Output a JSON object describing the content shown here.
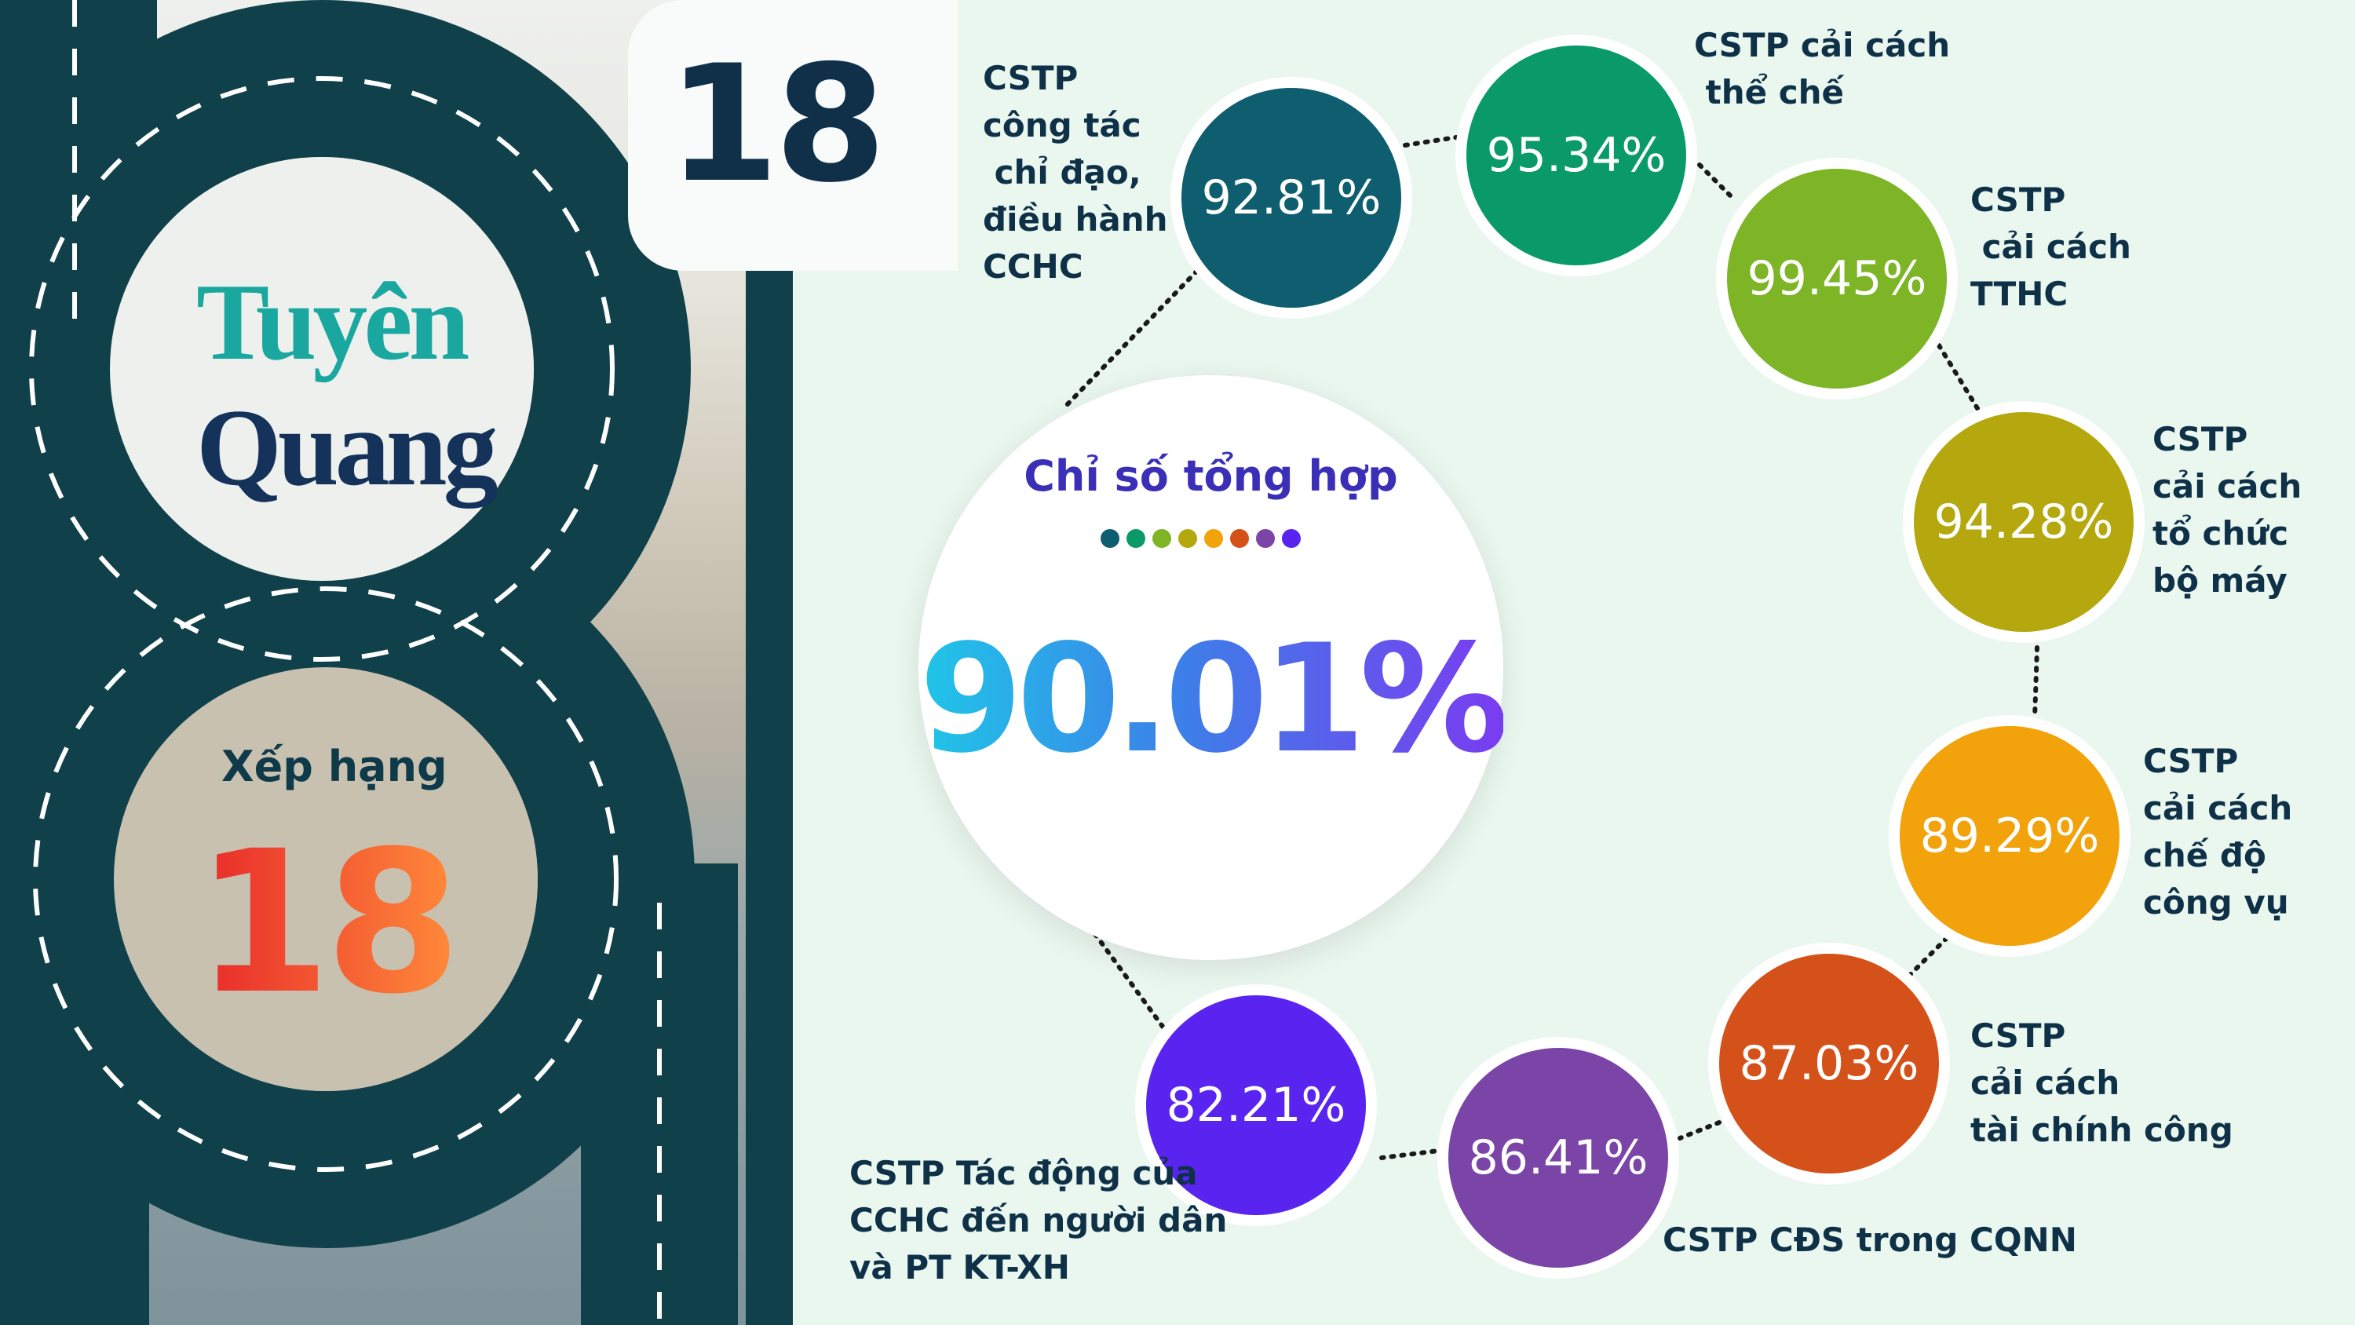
{
  "rank_top": "18",
  "city": {
    "line1": "Tuyên",
    "line2": "Quang"
  },
  "rank": {
    "label": "Xếp hạng",
    "value": "18"
  },
  "summary": {
    "title": "Chỉ số tổng hợp",
    "value": "90.01%",
    "dot_colors": [
      "#0f5e6f",
      "#0a9a6a",
      "#7db527",
      "#b5a80f",
      "#f2a20b",
      "#d4521a",
      "#7b45a8",
      "#5a24f0"
    ]
  },
  "indicators": [
    {
      "value": "92.81%",
      "label": "CSTP\ncông tác\n chỉ đạo,\nđiều hành\nCCHC",
      "color": "#0f5e6f"
    },
    {
      "value": "95.34%",
      "label": "CSTP cải cách\n thể chế",
      "color": "#0a9a6a"
    },
    {
      "value": "99.45%",
      "label": "CSTP\n cải cách\nTTHC",
      "color": "#7db527"
    },
    {
      "value": "94.28%",
      "label": "CSTP\ncải cách\ntổ chức\nbộ máy",
      "color": "#b5a80f"
    },
    {
      "value": "89.29%",
      "label": "CSTP\ncải cách\nchế độ\ncông vụ",
      "color": "#f2a20b"
    },
    {
      "value": "87.03%",
      "label": "CSTP\ncải cách\ntài chính công",
      "color": "#d4521a"
    },
    {
      "value": "86.41%",
      "label": "CSTP CĐS trong CQNN",
      "color": "#7b45a8"
    },
    {
      "value": "82.21%",
      "label": "CSTP Tác động của\nCCHC đến người dân\nvà PT KT-XH",
      "color": "#5a24f0"
    }
  ]
}
